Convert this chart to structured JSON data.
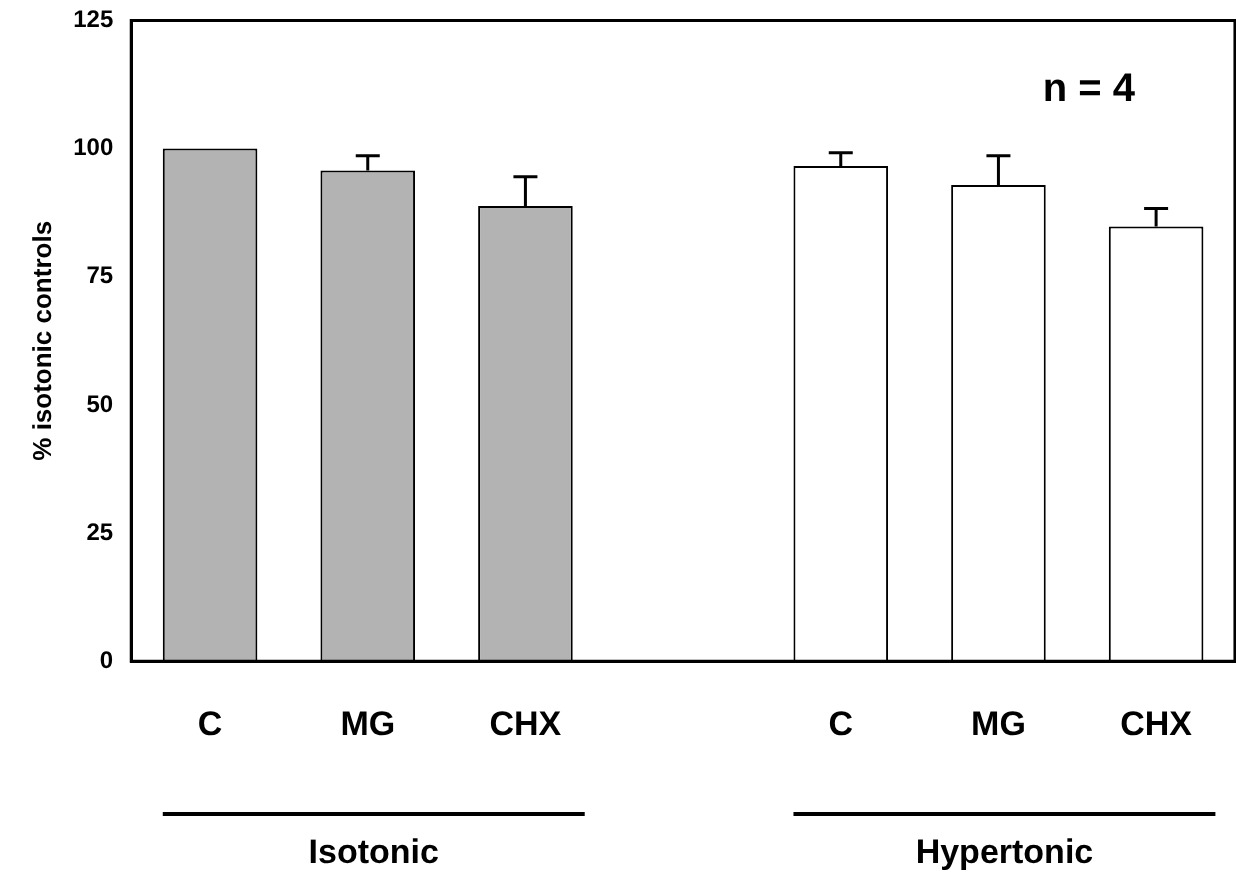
{
  "chart_data": {
    "type": "bar",
    "ylabel": "% isotonic controls",
    "categories": [
      "C",
      "MG",
      "CHX",
      null,
      "C",
      "MG",
      "CHX"
    ],
    "values": [
      100,
      95.7,
      88.8,
      null,
      96.6,
      92.9,
      84.8
    ],
    "errors": [
      null,
      [
        95.7,
        98.6
      ],
      [
        88.8,
        94.5
      ],
      null,
      [
        96.6,
        99.2
      ],
      [
        92.9,
        98.6
      ],
      [
        84.8,
        88.3
      ]
    ],
    "colors": [
      "#b3b3b3",
      "#b3b3b3",
      "#b3b3b3",
      "#ffffff",
      "#ffffff",
      "#ffffff",
      "#ffffff"
    ],
    "ylim": [
      0,
      125
    ],
    "yticks": [
      0,
      25,
      50,
      75,
      100,
      125
    ],
    "grid": false,
    "legend": false,
    "annotations": [
      "n = 4",
      "Isotonic",
      "Hypertonic"
    ]
  }
}
